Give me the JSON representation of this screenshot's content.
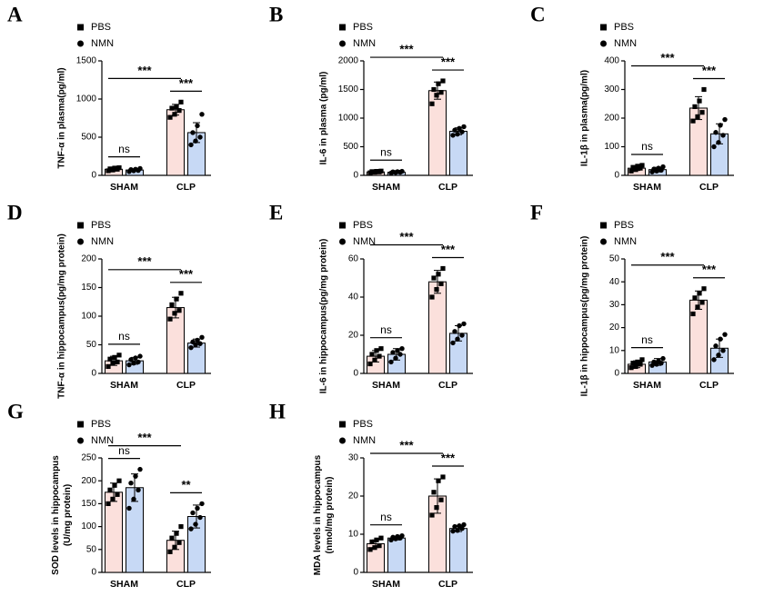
{
  "chart_data": [
    {
      "type": "bar",
      "panel": "A",
      "ylabel": "TNF-α in plasma(pg/ml)",
      "categories": [
        "SHAM",
        "CLP"
      ],
      "ylim": [
        0,
        1500
      ],
      "yticks": [
        0,
        500,
        1000,
        1500
      ],
      "annotations": [
        "ns",
        "***",
        "***"
      ],
      "series": [
        {
          "name": "PBS",
          "color": "#fbe0dc",
          "marker": "square",
          "values": [
            80,
            860
          ],
          "errors": [
            20,
            70
          ],
          "points": [
            [
              60,
              70,
              80,
              85,
              95,
              100
            ],
            [
              760,
              800,
              850,
              880,
              900,
              960
            ]
          ]
        },
        {
          "name": "NMN",
          "color": "#c7d9f5",
          "marker": "circle",
          "values": [
            70,
            560
          ],
          "errors": [
            15,
            130
          ],
          "points": [
            [
              50,
              60,
              65,
              75,
              80,
              90
            ],
            [
              400,
              450,
              500,
              560,
              650,
              800
            ]
          ]
        }
      ]
    },
    {
      "type": "bar",
      "panel": "B",
      "ylabel": "IL-6 in plasma (pg/ml)",
      "categories": [
        "SHAM",
        "CLP"
      ],
      "ylim": [
        0,
        2000
      ],
      "yticks": [
        0,
        500,
        1000,
        1500,
        2000
      ],
      "annotations": [
        "ns",
        "***",
        "***"
      ],
      "series": [
        {
          "name": "PBS",
          "color": "#fbe0dc",
          "marker": "square",
          "values": [
            60,
            1480
          ],
          "errors": [
            10,
            150
          ],
          "points": [
            [
              45,
              55,
              60,
              65,
              70,
              75
            ],
            [
              1250,
              1400,
              1450,
              1500,
              1600,
              1650
            ]
          ]
        },
        {
          "name": "NMN",
          "color": "#c7d9f5",
          "marker": "circle",
          "values": [
            55,
            770
          ],
          "errors": [
            10,
            60
          ],
          "points": [
            [
              40,
              50,
              55,
              60,
              65,
              70
            ],
            [
              700,
              720,
              760,
              790,
              820,
              850
            ]
          ]
        }
      ]
    },
    {
      "type": "bar",
      "panel": "C",
      "ylabel": "IL-1β in plasma(pg/ml)",
      "categories": [
        "SHAM",
        "CLP"
      ],
      "ylim": [
        0,
        400
      ],
      "yticks": [
        0,
        100,
        200,
        300,
        400
      ],
      "annotations": [
        "ns",
        "***",
        "***"
      ],
      "series": [
        {
          "name": "PBS",
          "color": "#fbe0dc",
          "marker": "square",
          "values": [
            25,
            235
          ],
          "errors": [
            8,
            40
          ],
          "points": [
            [
              15,
              20,
              25,
              28,
              32,
              35
            ],
            [
              190,
              205,
              220,
              240,
              260,
              300
            ]
          ]
        },
        {
          "name": "NMN",
          "color": "#c7d9f5",
          "marker": "circle",
          "values": [
            20,
            145
          ],
          "errors": [
            8,
            35
          ],
          "points": [
            [
              12,
              15,
              18,
              22,
              25,
              30
            ],
            [
              100,
              115,
              140,
              150,
              175,
              195
            ]
          ]
        }
      ]
    },
    {
      "type": "bar",
      "panel": "D",
      "ylabel": "TNF-α in hippocampus(pg/mg protein)",
      "categories": [
        "SHAM",
        "CLP"
      ],
      "ylim": [
        0,
        200
      ],
      "yticks": [
        0,
        50,
        100,
        150,
        200
      ],
      "annotations": [
        "ns",
        "***",
        "***"
      ],
      "series": [
        {
          "name": "PBS",
          "color": "#fbe0dc",
          "marker": "square",
          "values": [
            22,
            115
          ],
          "errors": [
            8,
            18
          ],
          "points": [
            [
              12,
              18,
              20,
              25,
              28,
              32
            ],
            [
              95,
              105,
              110,
              120,
              130,
              140
            ]
          ]
        },
        {
          "name": "NMN",
          "color": "#c7d9f5",
          "marker": "circle",
          "values": [
            22,
            53
          ],
          "errors": [
            6,
            7
          ],
          "points": [
            [
              15,
              18,
              20,
              24,
              27,
              30
            ],
            [
              45,
              50,
              52,
              55,
              58,
              63
            ]
          ]
        }
      ]
    },
    {
      "type": "bar",
      "panel": "E",
      "ylabel": "IL-6 in hippocampus(pg/mg protein)",
      "categories": [
        "SHAM",
        "CLP"
      ],
      "ylim": [
        0,
        60
      ],
      "yticks": [
        0,
        20,
        40,
        60
      ],
      "annotations": [
        "ns",
        "***",
        "***"
      ],
      "series": [
        {
          "name": "PBS",
          "color": "#fbe0dc",
          "marker": "square",
          "values": [
            9,
            48
          ],
          "errors": [
            3,
            6
          ],
          "points": [
            [
              5,
              7,
              9,
              10,
              12,
              13
            ],
            [
              40,
              44,
              47,
              50,
              52,
              55
            ]
          ]
        },
        {
          "name": "NMN",
          "color": "#c7d9f5",
          "marker": "circle",
          "values": [
            10,
            21
          ],
          "errors": [
            3,
            4
          ],
          "points": [
            [
              6,
              8,
              10,
              11,
              12,
              13
            ],
            [
              16,
              18,
              20,
              22,
              25,
              26
            ]
          ]
        }
      ]
    },
    {
      "type": "bar",
      "panel": "F",
      "ylabel": "IL-1β in hippocampus(pg/mg protein)",
      "categories": [
        "SHAM",
        "CLP"
      ],
      "ylim": [
        0,
        50
      ],
      "yticks": [
        0,
        10,
        20,
        30,
        40,
        50
      ],
      "annotations": [
        "ns",
        "***",
        "***"
      ],
      "series": [
        {
          "name": "PBS",
          "color": "#fbe0dc",
          "marker": "square",
          "values": [
            4,
            32
          ],
          "errors": [
            1.5,
            4
          ],
          "points": [
            [
              2.5,
              3,
              4,
              4.5,
              5,
              6
            ],
            [
              26,
              29,
              31,
              33,
              35,
              37
            ]
          ]
        },
        {
          "name": "NMN",
          "color": "#c7d9f5",
          "marker": "circle",
          "values": [
            5,
            11
          ],
          "errors": [
            1.5,
            4
          ],
          "points": [
            [
              3.5,
              4,
              4.5,
              5,
              5.5,
              6.5
            ],
            [
              6,
              8,
              10,
              12,
              15,
              17
            ]
          ]
        }
      ]
    },
    {
      "type": "bar",
      "panel": "G",
      "ylabel": [
        "SOD levels in hippocampus",
        "(U/mg protein)"
      ],
      "categories": [
        "SHAM",
        "CLP"
      ],
      "ylim": [
        0,
        250
      ],
      "yticks": [
        0,
        50,
        100,
        150,
        200,
        250
      ],
      "annotations": [
        "ns",
        "***",
        "**"
      ],
      "series": [
        {
          "name": "PBS",
          "color": "#fbe0dc",
          "marker": "square",
          "values": [
            175,
            70
          ],
          "errors": [
            20,
            20
          ],
          "points": [
            [
              150,
              160,
              170,
              180,
              190,
              200
            ],
            [
              45,
              55,
              65,
              75,
              85,
              100
            ]
          ]
        },
        {
          "name": "NMN",
          "color": "#c7d9f5",
          "marker": "circle",
          "values": [
            185,
            122
          ],
          "errors": [
            30,
            25
          ],
          "points": [
            [
              140,
              160,
              180,
              195,
              210,
              225
            ],
            [
              95,
              105,
              120,
              130,
              140,
              150
            ]
          ]
        }
      ]
    },
    {
      "type": "bar",
      "panel": "H",
      "ylabel": [
        "MDA levels in hippocampus",
        "(nmol/mg protein)"
      ],
      "categories": [
        "SHAM",
        "CLP"
      ],
      "ylim": [
        0,
        30
      ],
      "yticks": [
        0,
        10,
        20,
        30
      ],
      "annotations": [
        "ns",
        "***",
        "***"
      ],
      "series": [
        {
          "name": "PBS",
          "color": "#fbe0dc",
          "marker": "square",
          "values": [
            7.5,
            20
          ],
          "errors": [
            1,
            4.5
          ],
          "points": [
            [
              6,
              6.5,
              7,
              8,
              8.5,
              9
            ],
            [
              15,
              17,
              19,
              21,
              24,
              25
            ]
          ]
        },
        {
          "name": "NMN",
          "color": "#c7d9f5",
          "marker": "circle",
          "values": [
            9,
            11.5
          ],
          "errors": [
            0.5,
            0.8
          ],
          "points": [
            [
              8.5,
              8.8,
              9,
              9.2,
              9.4,
              9.6
            ],
            [
              10.8,
              11,
              11.5,
              12,
              12.2,
              12.5
            ]
          ]
        }
      ]
    }
  ]
}
